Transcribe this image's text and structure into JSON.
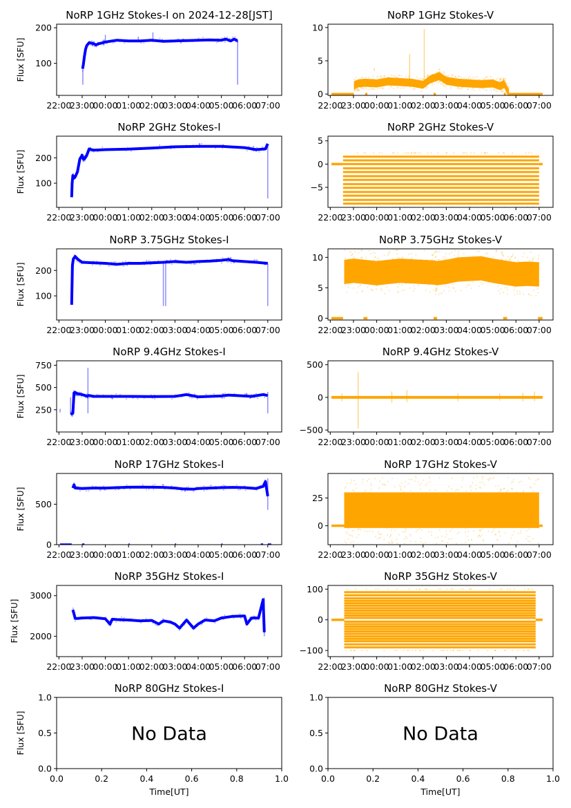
{
  "figure": {
    "time_ticks": [
      "22:00",
      "23:00",
      "00:00",
      "01:00",
      "02:00",
      "03:00",
      "04:00",
      "05:00",
      "06:00",
      "07:00"
    ],
    "time_range_hours": [
      -2.1,
      7.6
    ],
    "ylabel": "Flux [SFU]",
    "xlabel_time": "Time[UT]",
    "colors": {
      "stokes_i": "#0000ff",
      "stokes_v": "#ffa500"
    }
  },
  "chart_data": [
    {
      "id": "i1",
      "type": "scatter",
      "title": "NoRP 1GHz Stokes-I on 2024-12-28[JST]",
      "ylabel": "Flux [SFU]",
      "ylim": [
        10,
        210
      ],
      "yticks": [
        100,
        200
      ],
      "ytick_labels": [
        "100",
        "200"
      ],
      "series": [
        {
          "name": "Stokes-I",
          "color": "#0000ff",
          "x": [
            -0.98,
            -0.95,
            -0.9,
            -0.85,
            -0.8,
            -0.7,
            -0.6,
            -0.5,
            -0.4,
            -0.3,
            -0.1,
            0.0,
            0.3,
            0.5,
            1.0,
            1.5,
            2.0,
            2.5,
            3.0,
            3.5,
            4.0,
            4.5,
            5.0,
            5.2,
            5.4,
            5.55,
            5.65,
            5.7
          ],
          "y": [
            85,
            95,
            120,
            140,
            150,
            158,
            157,
            155,
            152,
            155,
            158,
            160,
            163,
            165,
            163,
            163,
            165,
            162,
            163,
            164,
            165,
            166,
            165,
            168,
            163,
            168,
            165,
            165
          ]
        }
      ],
      "spikes": [
        {
          "x": -0.97,
          "low": 40,
          "high": 90
        },
        {
          "x": 0.0,
          "low": 158,
          "high": 180
        },
        {
          "x": 1.42,
          "low": 160,
          "high": 175
        },
        {
          "x": 2.05,
          "low": 160,
          "high": 187
        },
        {
          "x": 5.7,
          "low": 40,
          "high": 165
        }
      ]
    },
    {
      "id": "v1",
      "type": "scatter",
      "title": "NoRP 1GHz Stokes-V",
      "ylabel": "",
      "ylim": [
        -0.2,
        10.5
      ],
      "yticks": [
        0,
        5,
        10
      ],
      "ytick_labels": [
        "0",
        "5",
        "10"
      ],
      "series": [
        {
          "name": "Stokes-V",
          "color": "#ffa500",
          "x": [
            -0.98,
            -0.8,
            -0.5,
            0.0,
            0.5,
            1.0,
            1.5,
            2.0,
            2.3,
            2.7,
            3.0,
            3.5,
            4.0,
            4.5,
            5.0,
            5.3,
            5.5,
            5.7
          ],
          "y": [
            1.3,
            1.6,
            1.7,
            1.6,
            1.9,
            1.8,
            1.7,
            1.4,
            2.2,
            2.7,
            2.0,
            1.7,
            1.6,
            1.5,
            1.6,
            1.2,
            1.5,
            0.1
          ],
          "band_halfwidth": 0.6
        }
      ],
      "zero_segments": [
        [
          -1.95,
          -0.98
        ],
        [
          -0.5,
          -0.4
        ],
        [
          2.45,
          2.55
        ],
        [
          5.48,
          5.56
        ],
        [
          5.7,
          7.15
        ]
      ],
      "spikes": [
        {
          "x": 1.42,
          "low": 2.0,
          "high": 6.0
        },
        {
          "x": 2.05,
          "low": 2.0,
          "high": 9.8
        },
        {
          "x": -0.1,
          "low": 3.5,
          "high": 3.9
        }
      ]
    },
    {
      "id": "i2",
      "type": "scatter",
      "title": "NoRP 2GHz Stokes-I",
      "ylabel": "Flux [SFU]",
      "ylim": [
        5,
        285
      ],
      "yticks": [
        100,
        200
      ],
      "ytick_labels": [
        "100",
        "200"
      ],
      "series": [
        {
          "name": "Stokes-I",
          "color": "#0000ff",
          "x": [
            -1.45,
            -1.43,
            -1.4,
            -1.35,
            -1.3,
            -1.2,
            -1.1,
            -1.0,
            -0.95,
            -0.9,
            -0.8,
            -0.7,
            -0.6,
            -0.5,
            0.0,
            1.0,
            2.0,
            3.0,
            4.0,
            5.0,
            6.0,
            6.5,
            6.9,
            7.0
          ],
          "y": [
            45,
            100,
            130,
            120,
            125,
            145,
            195,
            210,
            195,
            195,
            210,
            235,
            232,
            230,
            232,
            234,
            238,
            243,
            245,
            245,
            240,
            232,
            235,
            255
          ]
        }
      ],
      "spikes": [
        {
          "x": 7.0,
          "low": 40,
          "high": 255
        },
        {
          "x": 4.05,
          "low": 240,
          "high": 258
        }
      ]
    },
    {
      "id": "v2",
      "type": "scatter",
      "title": "NoRP 2GHz Stokes-V",
      "ylabel": "",
      "ylim": [
        -9.3,
        6
      ],
      "yticks": [
        -5,
        0,
        5
      ],
      "ytick_labels": [
        "−5",
        "0",
        "5"
      ],
      "series": [
        {
          "name": "Stokes-V",
          "color": "#ffa500",
          "levels": [
            1.6,
            0.8,
            0,
            -0.9,
            -1.7,
            -2.6,
            -3.4,
            -4.3,
            -5.1,
            -6.0,
            -6.8,
            -7.7,
            -8.5
          ],
          "x_range": [
            -1.45,
            7.0
          ]
        }
      ],
      "zero_segments": [
        [
          -1.95,
          -1.45
        ],
        [
          7.0,
          7.15
        ]
      ]
    },
    {
      "id": "i3",
      "type": "scatter",
      "title": "NoRP 3.75GHz Stokes-I",
      "ylabel": "Flux [SFU]",
      "ylim": [
        5,
        285
      ],
      "yticks": [
        100,
        200
      ],
      "ytick_labels": [
        "100",
        "200"
      ],
      "series": [
        {
          "name": "Stokes-I",
          "color": "#0000ff",
          "x": [
            -1.45,
            -1.42,
            -1.38,
            -1.3,
            -1.2,
            -1.0,
            -0.5,
            0.0,
            0.5,
            1.0,
            1.5,
            2.0,
            2.5,
            3.0,
            3.5,
            4.0,
            4.5,
            5.0,
            5.3,
            5.5,
            6.0,
            6.5,
            7.0
          ],
          "y": [
            65,
            220,
            245,
            255,
            245,
            232,
            230,
            228,
            224,
            228,
            228,
            230,
            232,
            235,
            232,
            235,
            237,
            240,
            243,
            238,
            235,
            232,
            228
          ]
        }
      ],
      "spikes": [
        {
          "x": 2.5,
          "low": 60,
          "high": 230
        },
        {
          "x": 2.6,
          "low": 60,
          "high": 230
        },
        {
          "x": 7.0,
          "low": 60,
          "high": 228
        }
      ]
    },
    {
      "id": "v3",
      "type": "scatter",
      "title": "NoRP 3.75GHz Stokes-V",
      "ylabel": "",
      "ylim": [
        -0.3,
        11.4
      ],
      "yticks": [
        0,
        5,
        10
      ],
      "ytick_labels": [
        "0",
        "5",
        "10"
      ],
      "series": [
        {
          "name": "Stokes-V",
          "color": "#ffa500",
          "x": [
            -1.4,
            -1.0,
            -0.5,
            0.0,
            0.5,
            1.0,
            1.5,
            2.0,
            2.5,
            2.6,
            3.0,
            3.5,
            4.0,
            4.5,
            5.0,
            5.5,
            6.0,
            6.5,
            7.0
          ],
          "y": [
            7.6,
            7.8,
            7.6,
            7.4,
            7.6,
            7.8,
            7.7,
            7.6,
            7.5,
            7.4,
            7.6,
            8.0,
            8.1,
            8.2,
            7.8,
            7.5,
            7.2,
            7.3,
            7.2
          ],
          "band_halfwidth": 2.0
        }
      ],
      "zero_segments": [
        [
          -1.95,
          -1.45
        ],
        [
          -0.57,
          -0.4
        ],
        [
          2.45,
          2.6
        ],
        [
          5.45,
          5.62
        ],
        [
          6.95,
          7.15
        ]
      ]
    },
    {
      "id": "i4",
      "type": "scatter",
      "title": "NoRP 9.4GHz Stokes-I",
      "ylabel": "Flux [SFU]",
      "ylim": [
        0,
        800
      ],
      "yticks": [
        250,
        500,
        750
      ],
      "ytick_labels": [
        "250",
        "500",
        "750"
      ],
      "series": [
        {
          "name": "Stokes-I",
          "color": "#0000ff",
          "x": [
            -1.5,
            -1.4,
            -1.35,
            -1.3,
            -1.2,
            -1.0,
            -0.8,
            -0.7,
            -0.5,
            0.0,
            1.0,
            2.0,
            3.0,
            3.5,
            4.0,
            5.0,
            5.3,
            6.0,
            6.3,
            6.8,
            7.0
          ],
          "y": [
            200,
            210,
            440,
            445,
            430,
            420,
            405,
            410,
            400,
            400,
            400,
            398,
            400,
            420,
            395,
            405,
            415,
            405,
            400,
            420,
            410
          ]
        }
      ],
      "spikes": [
        {
          "x": -0.75,
          "low": 210,
          "high": 720
        },
        {
          "x": -1.5,
          "low": 200,
          "high": 390
        },
        {
          "x": -1.95,
          "low": 220,
          "high": 260
        },
        {
          "x": 7.0,
          "low": 210,
          "high": 450
        }
      ]
    },
    {
      "id": "v4",
      "type": "scatter",
      "title": "NoRP 9.4GHz Stokes-V",
      "ylabel": "",
      "ylim": [
        -530,
        560
      ],
      "yticks": [
        -500,
        0,
        500
      ],
      "ytick_labels": [
        "−500",
        "0",
        "500"
      ],
      "series": [
        {
          "name": "Stokes-V",
          "color": "#ffa500",
          "x_range": [
            -1.95,
            7.15
          ],
          "level": 0
        }
      ],
      "spikes": [
        {
          "x": -0.8,
          "low": -480,
          "high": 390
        },
        {
          "x": -1.5,
          "low": -60,
          "high": 60
        },
        {
          "x": 0.65,
          "low": -80,
          "high": 90
        },
        {
          "x": 1.3,
          "low": -70,
          "high": 110
        },
        {
          "x": 3.5,
          "low": -60,
          "high": 60
        },
        {
          "x": 5.3,
          "low": -50,
          "high": 60
        },
        {
          "x": 6.3,
          "low": -60,
          "high": 70
        },
        {
          "x": 6.8,
          "low": -60,
          "high": 90
        }
      ]
    },
    {
      "id": "i5",
      "type": "scatter",
      "title": "NoRP 17GHz Stokes-I",
      "ylabel": "Flux [SFU]",
      "ylim": [
        0,
        880
      ],
      "yticks": [
        0,
        500
      ],
      "ytick_labels": [
        "0",
        "500"
      ],
      "series": [
        {
          "name": "Stokes-I",
          "color": "#0000ff",
          "x": [
            -1.4,
            -1.35,
            -1.3,
            -1.0,
            -0.5,
            0.0,
            0.5,
            1.0,
            1.5,
            2.0,
            2.5,
            3.0,
            3.3,
            3.8,
            4.0,
            4.5,
            5.0,
            5.5,
            6.0,
            6.5,
            6.8,
            6.9,
            7.0
          ],
          "y": [
            700,
            740,
            700,
            695,
            700,
            700,
            705,
            710,
            712,
            710,
            708,
            700,
            690,
            685,
            695,
            700,
            705,
            708,
            705,
            695,
            720,
            780,
            600
          ]
        }
      ],
      "spikes": [
        {
          "x": 7.0,
          "low": 430,
          "high": 820
        }
      ],
      "zero_segments": [
        [
          -1.95,
          -1.45
        ],
        [
          -1.0,
          -0.9
        ],
        [
          1.0,
          1.05
        ],
        [
          3.0,
          3.05
        ],
        [
          5.0,
          5.05
        ],
        [
          6.7,
          6.8
        ],
        [
          7.0,
          7.15
        ]
      ]
    },
    {
      "id": "v5",
      "type": "scatter",
      "title": "NoRP 17GHz Stokes-V",
      "ylabel": "",
      "ylim": [
        -17,
        47
      ],
      "yticks": [
        0,
        25
      ],
      "ytick_labels": [
        "0",
        "25"
      ],
      "series": [
        {
          "name": "Stokes-V",
          "color": "#ffa500",
          "x_range": [
            -1.4,
            7.0
          ],
          "center": 14,
          "band_halfwidth": 16
        }
      ],
      "zero_segments": [
        [
          -1.95,
          -1.4
        ],
        [
          7.0,
          7.15
        ]
      ]
    },
    {
      "id": "i6",
      "type": "scatter",
      "title": "NoRP 35GHz Stokes-I",
      "ylabel": "Flux [SFU]",
      "ylim": [
        1500,
        3250
      ],
      "yticks": [
        2000,
        3000
      ],
      "ytick_labels": [
        "2000",
        "3000"
      ],
      "series": [
        {
          "name": "Stokes-I",
          "color": "#0000ff",
          "x": [
            -1.4,
            -1.35,
            -1.3,
            -1.2,
            -1.0,
            -0.5,
            0.0,
            0.2,
            0.3,
            0.5,
            1.0,
            1.5,
            2.0,
            2.3,
            2.5,
            2.8,
            3.0,
            3.2,
            3.5,
            3.8,
            4.0,
            4.3,
            4.7,
            5.0,
            5.5,
            6.0,
            6.1,
            6.3,
            6.6,
            6.8,
            6.85
          ],
          "y": [
            2650,
            2550,
            2440,
            2440,
            2450,
            2460,
            2430,
            2300,
            2420,
            2410,
            2400,
            2380,
            2390,
            2300,
            2380,
            2350,
            2300,
            2200,
            2400,
            2200,
            2300,
            2400,
            2380,
            2450,
            2490,
            2500,
            2300,
            2450,
            2450,
            2900,
            2100
          ]
        }
      ],
      "spikes": [
        {
          "x": 6.85,
          "low": 2000,
          "high": 2950
        }
      ]
    },
    {
      "id": "v6",
      "type": "scatter",
      "title": "NoRP 35GHz Stokes-V",
      "ylabel": "",
      "ylim": [
        -120,
        112
      ],
      "yticks": [
        -100,
        0,
        100
      ],
      "ytick_labels": [
        "−100",
        "0",
        "100"
      ],
      "series": [
        {
          "name": "Stokes-V",
          "color": "#ffa500",
          "levels": [
            90,
            80,
            70,
            62,
            54,
            46,
            38,
            30,
            22,
            14,
            6,
            -6,
            -14,
            -22,
            -30,
            -38,
            -46,
            -54,
            -62,
            -70,
            -80,
            -90
          ],
          "x_range": [
            -1.4,
            6.85
          ]
        }
      ],
      "zero_segments": [
        [
          -1.95,
          -1.4
        ],
        [
          6.85,
          7.15
        ]
      ]
    },
    {
      "id": "i7",
      "type": "empty",
      "title": "NoRP 80GHz Stokes-I",
      "ylabel": "Flux [SFU]",
      "xlabel": "Time[UT]",
      "ylim": [
        0,
        1
      ],
      "xlim": [
        0,
        1
      ],
      "yticks": [
        0,
        0.5,
        1.0
      ],
      "ytick_labels": [
        "0.0",
        "0.5",
        "1.0"
      ],
      "xticks": [
        0,
        0.2,
        0.4,
        0.6,
        0.8,
        1.0
      ],
      "xtick_labels": [
        "0.0",
        "0.2",
        "0.4",
        "0.6",
        "0.8",
        "1.0"
      ],
      "annotation": "No Data"
    },
    {
      "id": "v7",
      "type": "empty",
      "title": "NoRP 80GHz Stokes-V",
      "ylabel": "",
      "xlabel": "Time[UT]",
      "ylim": [
        0,
        1
      ],
      "xlim": [
        0,
        1
      ],
      "yticks": [
        0,
        0.5,
        1.0
      ],
      "ytick_labels": [
        "0.0",
        "0.5",
        "1.0"
      ],
      "xticks": [
        0,
        0.2,
        0.4,
        0.6,
        0.8,
        1.0
      ],
      "xtick_labels": [
        "0.0",
        "0.2",
        "0.4",
        "0.6",
        "0.8",
        "1.0"
      ],
      "annotation": "No Data"
    }
  ]
}
